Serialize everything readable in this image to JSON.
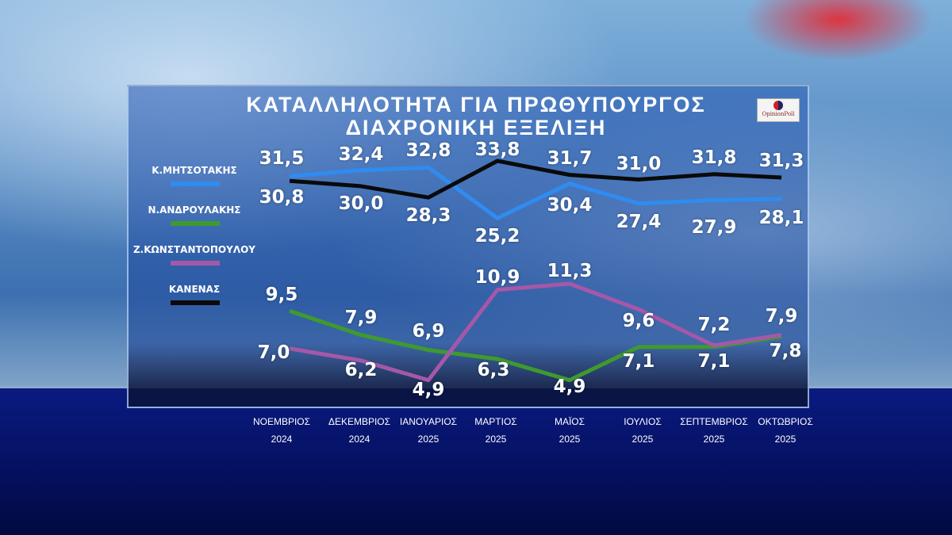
{
  "chart_data": {
    "type": "line",
    "title": "ΚΑΤΑΛΛΗΛΟΤΗΤΑ ΓΙΑ ΠΡΩΘΥΠΟΥΡΓΟΣ",
    "subtitle": "ΔΙΑΧΡΟΝΙΚΗ ΕΞΕΛΙΞΗ",
    "categories": [
      [
        "ΝΟΕΜΒΡΙΟΣ",
        "2024"
      ],
      [
        "ΔΕΚΕΜΒΡΙΟΣ",
        "2024"
      ],
      [
        "ΙΑΝΟΥΑΡΙΟΣ",
        "2025"
      ],
      [
        "ΜΑΡΤΙΟΣ",
        "2025"
      ],
      [
        "ΜΑΪΟΣ",
        "2025"
      ],
      [
        "ΙΟΥΛΙΟΣ",
        "2025"
      ],
      [
        "ΣΕΠΤΕΜΒΡΙΟΣ",
        "2025"
      ],
      [
        "ΟΚΤΩΒΡΙΟΣ",
        "2025"
      ]
    ],
    "series": [
      {
        "name": "Κ.ΜΗΤΣΟΤΑΚΗΣ",
        "color": "#2f8cf0",
        "values": [
          31.5,
          32.4,
          32.8,
          25.2,
          30.4,
          27.4,
          27.9,
          28.1
        ],
        "labels": [
          "31,5",
          "32,4",
          "32,8",
          "25,2",
          "30,4",
          "27,4",
          "27,9",
          "28,1"
        ]
      },
      {
        "name": "Ν.ΑΝΔΡΟΥΛΑΚΗΣ",
        "color": "#3f9a2e",
        "values": [
          9.5,
          7.9,
          6.9,
          6.3,
          4.9,
          7.1,
          7.1,
          7.8
        ],
        "labels": [
          "9,5",
          "7,9",
          "6,9",
          "6,3",
          "4,9",
          "7,1",
          "7,1",
          "7,8"
        ]
      },
      {
        "name": "Ζ.ΚΩΝΣΤΑΝΤΟΠΟΥΛΟΥ",
        "color": "#a558a8",
        "values": [
          7.0,
          6.2,
          4.9,
          10.9,
          11.3,
          9.6,
          7.2,
          7.9
        ],
        "labels": [
          "7,0",
          "6,2",
          "4,9",
          "10,9",
          "11,3",
          "9,6",
          "7,2",
          "7,9"
        ]
      },
      {
        "name": "ΚΑΝΕΝΑΣ",
        "color": "#0a0a0a",
        "values": [
          30.8,
          30.0,
          28.3,
          33.8,
          31.7,
          31.0,
          31.8,
          31.3
        ],
        "labels": [
          "30,8",
          "30,0",
          "28,3",
          "33,8",
          "31,7",
          "31,0",
          "31,8",
          "31,3"
        ]
      }
    ],
    "legend": "left"
  },
  "logo": "OpinionPoll"
}
